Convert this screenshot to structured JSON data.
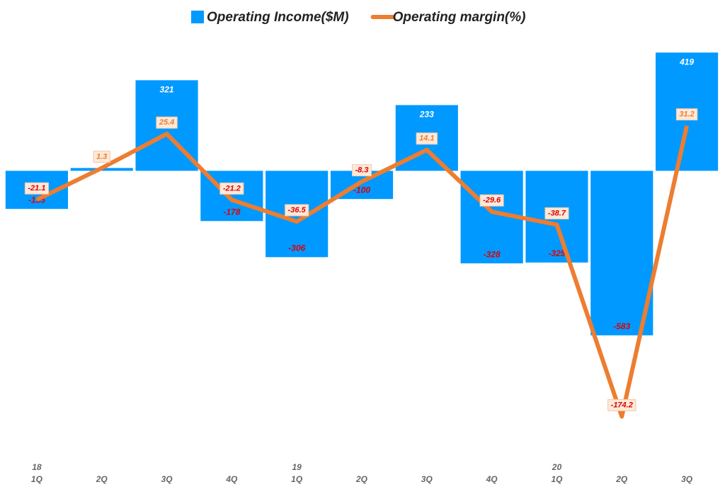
{
  "chart_data": {
    "type": "bar_line",
    "categories": [
      "1Q",
      "2Q",
      "3Q",
      "4Q",
      "1Q",
      "2Q",
      "3Q",
      "4Q",
      "1Q",
      "2Q",
      "3Q"
    ],
    "year_labels": [
      "18",
      null,
      null,
      null,
      "19",
      null,
      null,
      null,
      "20",
      null,
      null
    ],
    "series": [
      {
        "name": "Operating Income($M)",
        "type": "bar",
        "color": "#0099ff",
        "values": [
          -135,
          10,
          321,
          -178,
          -306,
          -100,
          233,
          -328,
          -325,
          -583,
          419
        ],
        "value_labels": [
          "-135",
          null,
          "321",
          "-178",
          "-306",
          "-100",
          "233",
          "-328",
          "-325",
          "-583",
          "419"
        ]
      },
      {
        "name": "Operating margin(%)",
        "type": "line",
        "axis": "y2",
        "color": "#ed7d31",
        "values": [
          -21.1,
          1.3,
          25.4,
          -21.2,
          -36.5,
          -8.3,
          14.1,
          -29.6,
          -38.7,
          -174.2,
          31.2
        ]
      }
    ],
    "ylim": [
      -1000,
      505
    ],
    "y2lim": [
      -200,
      100
    ]
  }
}
